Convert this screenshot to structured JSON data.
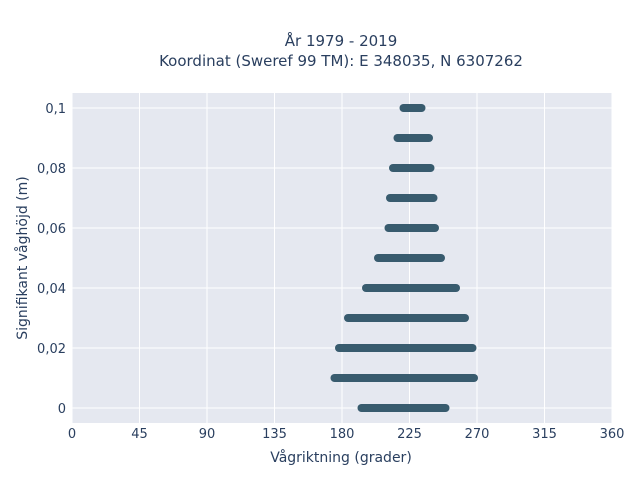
{
  "chart_data": {
    "type": "scatter",
    "title": "År 1979 - 2019",
    "subtitle": "Koordinat (Sweref 99 TM): E 348035, N 6307262",
    "xlabel": "Vågriktning (grader)",
    "ylabel": "Signifikant våghöjd (m)",
    "xlim": [
      0,
      360
    ],
    "ylim": [
      -0.005,
      0.105
    ],
    "xticks": [
      0,
      45,
      90,
      135,
      180,
      225,
      270,
      315,
      360
    ],
    "xtick_labels": [
      "0",
      "45",
      "90",
      "135",
      "180",
      "225",
      "270",
      "315",
      "360"
    ],
    "yticks": [
      0,
      0.02,
      0.04,
      0.06,
      0.08,
      0.1
    ],
    "ytick_labels": [
      "0",
      "0,02",
      "0,04",
      "0,06",
      "0,08",
      "0,1"
    ],
    "grid": true,
    "legend": "none",
    "background": "#e5e8f0",
    "marker_color": "#2f5468",
    "series": [
      {
        "points": [
          {
            "y": 0.0,
            "x_min": 193,
            "x_max": 249
          },
          {
            "y": 0.01,
            "x_min": 175,
            "x_max": 268
          },
          {
            "y": 0.02,
            "x_min": 178,
            "x_max": 267
          },
          {
            "y": 0.03,
            "x_min": 184,
            "x_max": 262
          },
          {
            "y": 0.04,
            "x_min": 196,
            "x_max": 256
          },
          {
            "y": 0.05,
            "x_min": 204,
            "x_max": 246
          },
          {
            "y": 0.06,
            "x_min": 211,
            "x_max": 242
          },
          {
            "y": 0.07,
            "x_min": 212,
            "x_max": 241
          },
          {
            "y": 0.08,
            "x_min": 214,
            "x_max": 239
          },
          {
            "y": 0.09,
            "x_min": 217,
            "x_max": 238
          },
          {
            "y": 0.1,
            "x_min": 221,
            "x_max": 233
          }
        ]
      }
    ]
  }
}
